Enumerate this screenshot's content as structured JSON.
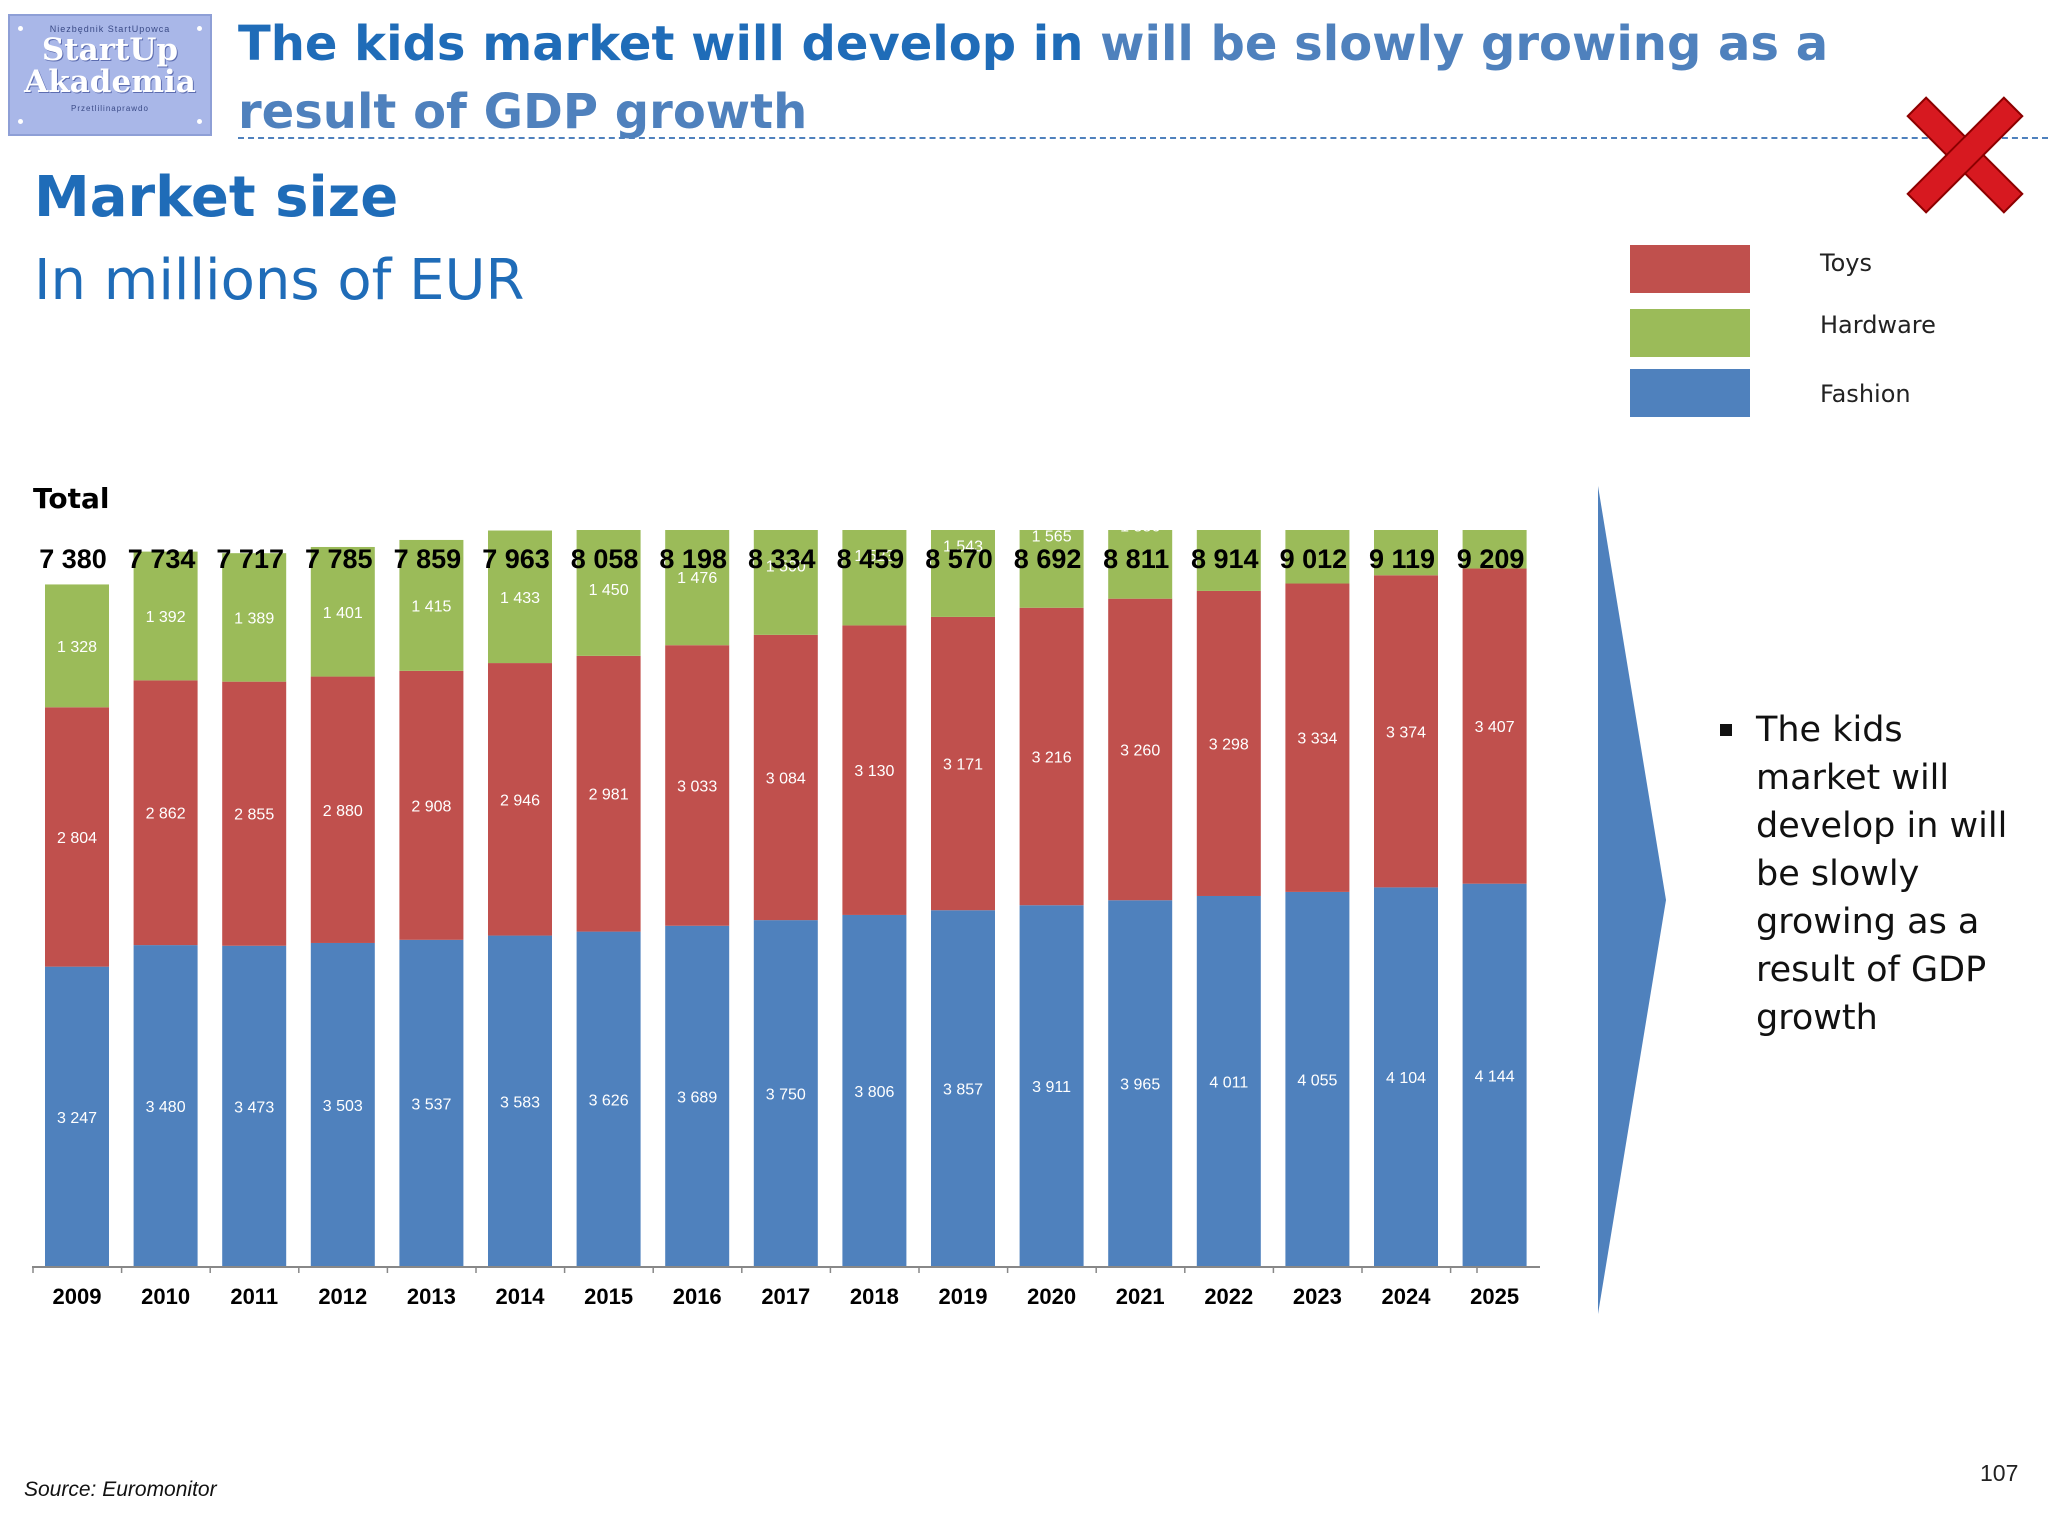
{
  "logo": {
    "top": "Niezbędnik StartUpowca",
    "line1": "StartUp",
    "line2": "Akademia",
    "bottom": "Przetlilinaprawdo"
  },
  "headline": {
    "part1": "The kids market will develop in",
    "part2": "will be slowly growing as a result of GDP growth"
  },
  "market": {
    "title": "Market size",
    "subtitle": "In millions of EUR"
  },
  "legend": [
    {
      "label": "Toys",
      "color": "#c0504d"
    },
    {
      "label": "Hardware",
      "color": "#9bbb59"
    },
    {
      "label": "Fashion",
      "color": "#4f81bd"
    }
  ],
  "total_label": "Total",
  "bullet": "The kids market will develop in will be slowly growing as a result of GDP growth",
  "source": "Source: Euromonitor",
  "page_number": "107",
  "chart_data": {
    "type": "bar",
    "stacked": true,
    "categories": [
      "2009",
      "2010",
      "2011",
      "2012",
      "2013",
      "2014",
      "2015",
      "2016",
      "2017",
      "2018",
      "2019",
      "2020",
      "2021",
      "2022",
      "2023",
      "2024",
      "2025"
    ],
    "series": [
      {
        "name": "Fashion",
        "color": "#4f81bd",
        "values": [
          3247,
          3480,
          3473,
          3503,
          3537,
          3583,
          3626,
          3689,
          3750,
          3806,
          3857,
          3911,
          3965,
          4011,
          4055,
          4104,
          4144
        ]
      },
      {
        "name": "Toys",
        "color": "#c0504d",
        "values": [
          2804,
          2862,
          2855,
          2880,
          2908,
          2946,
          2981,
          3033,
          3084,
          3130,
          3171,
          3216,
          3260,
          3298,
          3334,
          3374,
          3407
        ]
      },
      {
        "name": "Hardware",
        "color": "#9bbb59",
        "values": [
          1328,
          1392,
          1389,
          1401,
          1415,
          1433,
          1450,
          1476,
          1500,
          1523,
          1543,
          1565,
          1586,
          1605,
          1622,
          1641,
          1658
        ]
      }
    ],
    "totals": [
      "7 380",
      "7 734",
      "7 717",
      "7 785",
      "7 859",
      "7 963",
      "8 058",
      "8 198",
      "8 334",
      "8 459",
      "8 570",
      "8 692",
      "8 811",
      "8 914",
      "9 012",
      "9 119",
      "9 209"
    ],
    "title": "Market size",
    "ylabel": "In millions of EUR",
    "ylim": [
      0,
      9400
    ],
    "grid": false,
    "legend_position": "top-right"
  }
}
